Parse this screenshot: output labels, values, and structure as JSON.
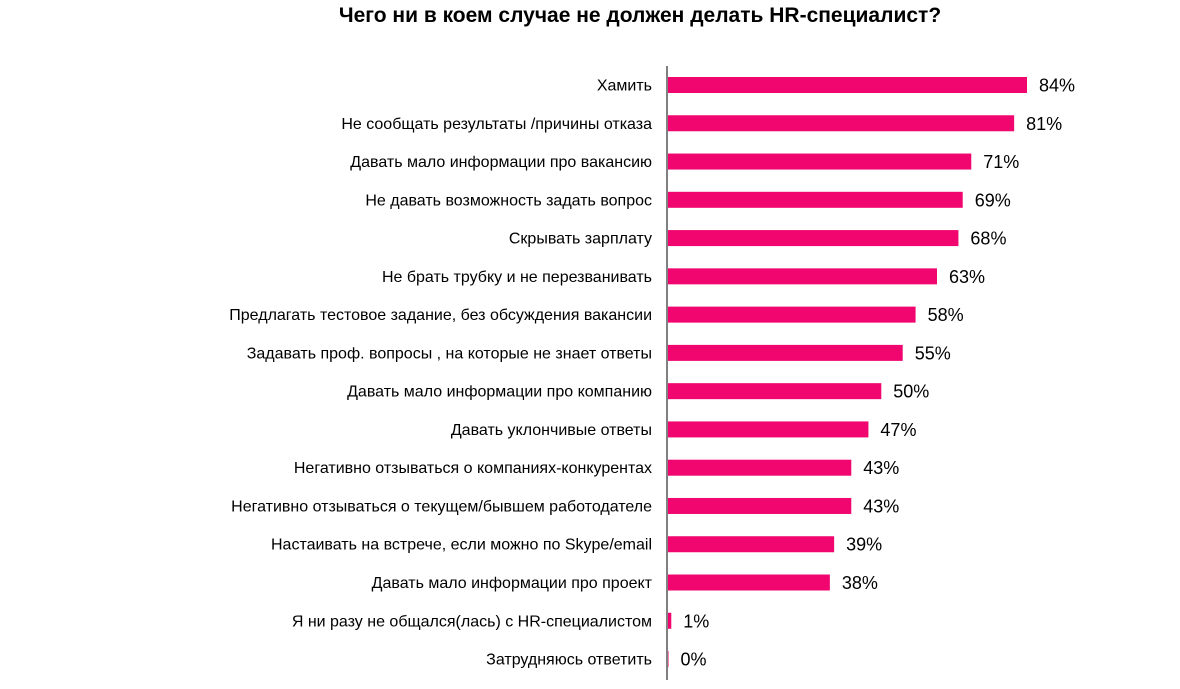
{
  "chart_data": {
    "type": "bar",
    "orientation": "horizontal",
    "title": "Чего ни в коем случае не должен делать HR-специалист?",
    "xlabel": "",
    "ylabel": "",
    "grid": false,
    "legend": "none",
    "xlim": [
      0,
      100
    ],
    "bar_color": "#f0066e",
    "categories": [
      "Хамить",
      "Не сообщать результаты /причины отказа",
      "Давать мало информации про вакансию",
      "Не давать возможность задать вопрос",
      "Скрывать зарплату",
      "Не брать трубку и не перезванивать",
      "Предлагать тестовое задание, без обсуждения вакансии",
      "Задавать проф. вопросы , на которые не знает ответы",
      "Давать мало информации про компанию",
      "Давать уклончивые ответы",
      "Негативно отзываться о компаниях-конкурентах",
      "Негативно отзываться о текущем/бывшем работодателе",
      "Настаивать на встрече, если можно по Skype/email",
      "Давать мало информации про проект",
      "Я ни разу не общался(лась) с HR-специалистом",
      "Затрудняюсь ответить"
    ],
    "values": [
      84,
      81,
      71,
      69,
      68,
      63,
      58,
      55,
      50,
      47,
      43,
      43,
      39,
      38,
      1,
      0
    ],
    "value_labels": [
      "84%",
      "81%",
      "71%",
      "69%",
      "68%",
      "63%",
      "58%",
      "55%",
      "50%",
      "47%",
      "43%",
      "43%",
      "39%",
      "38%",
      "1%",
      "0%"
    ]
  }
}
